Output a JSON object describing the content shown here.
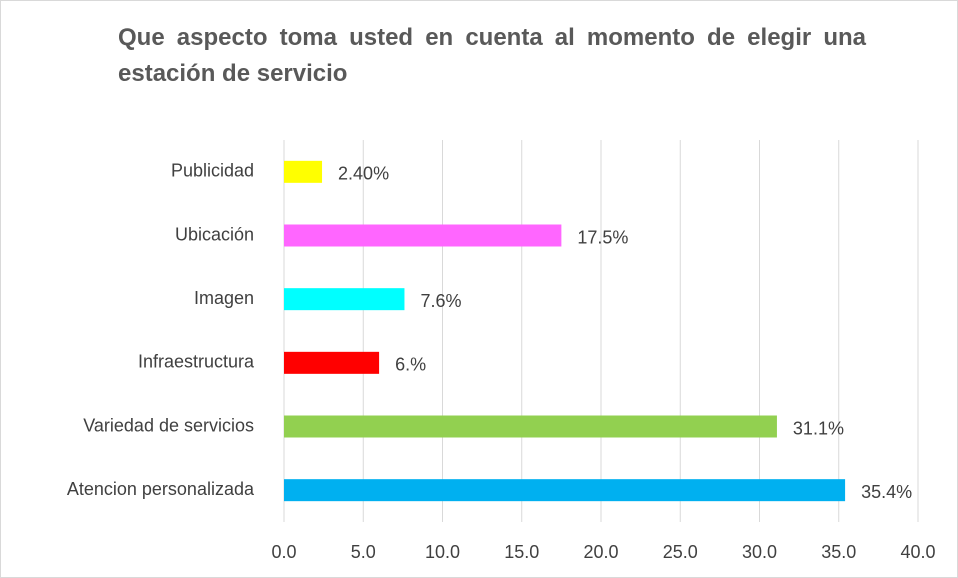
{
  "chart_data": {
    "type": "bar",
    "orientation": "horizontal",
    "title": "Que aspecto toma usted en cuenta al momento de elegir una estación de servicio",
    "categories": [
      "Publicidad",
      "Ubicación",
      "Imagen",
      "Infraestructura",
      "Variedad de servicios",
      "Atencion personalizada"
    ],
    "values": [
      2.4,
      17.5,
      7.6,
      6,
      31.1,
      35.4
    ],
    "value_labels": [
      "2.40%",
      "17.5%",
      "7.6%",
      "6.%",
      "31.1%",
      "35.4%"
    ],
    "colors": [
      "#ffff00",
      "#ff66ff",
      "#00ffff",
      "#ff0000",
      "#92d050",
      "#00b0f0"
    ],
    "xlim": [
      0,
      40
    ],
    "xticks": [
      {
        "value": 0,
        "label": "0.0"
      },
      {
        "value": 5,
        "label": "5.0"
      },
      {
        "value": 10,
        "label": "10.0"
      },
      {
        "value": 15,
        "label": "15.0"
      },
      {
        "value": 20,
        "label": "20.0"
      },
      {
        "value": 25,
        "label": "25.0"
      },
      {
        "value": 30,
        "label": "30.0"
      },
      {
        "value": 35,
        "label": "35.0"
      },
      {
        "value": 40,
        "label": "40.0"
      }
    ],
    "grid": true
  }
}
